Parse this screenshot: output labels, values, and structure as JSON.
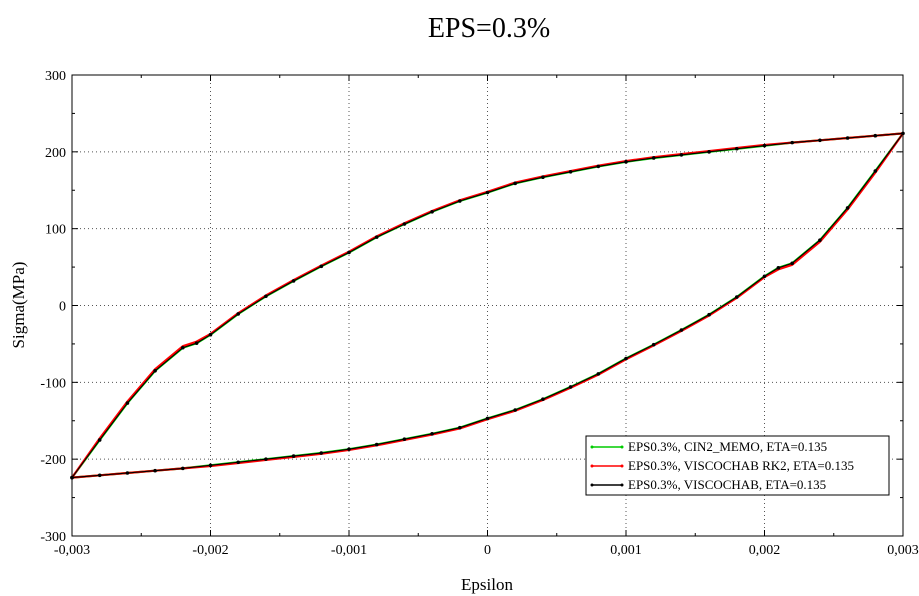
{
  "chart_data": {
    "type": "line",
    "title": "EPS=0.3%",
    "xlabel": "Epsilon",
    "ylabel": "Sigma(MPa)",
    "xlim": [
      -0.003,
      0.003
    ],
    "ylim": [
      -300,
      300
    ],
    "xticks": [
      -0.003,
      -0.002,
      -0.001,
      0,
      0.001,
      0.002,
      0.003
    ],
    "xtick_labels": [
      "-0,003",
      "-0,002",
      "-0,001",
      "0",
      "0,001",
      "0,002",
      "0,003"
    ],
    "yticks": [
      -300,
      -200,
      -100,
      0,
      100,
      200,
      300
    ],
    "ytick_labels": [
      "-300",
      "-200",
      "-100",
      "0",
      "100",
      "200",
      "300"
    ],
    "grid": true,
    "legend_position": "bottom-right",
    "series": [
      {
        "name": "EPS0.3%, CIN2_MEMO, ETA=0.135",
        "color": "#00cc00",
        "marker": "none",
        "x": [
          -0.003,
          -0.0028,
          -0.0026,
          -0.0024,
          -0.0022,
          -0.0021,
          -0.002,
          -0.0018,
          -0.0016,
          -0.0014,
          -0.0012,
          -0.001,
          -0.0008,
          -0.0006,
          -0.0004,
          -0.0002,
          0,
          0.0002,
          0.0004,
          0.0006,
          0.0008,
          0.001,
          0.0012,
          0.0014,
          0.0016,
          0.0018,
          0.002,
          0.0022,
          0.0024,
          0.0026,
          0.0028,
          0.003,
          0.0028,
          0.0026,
          0.0024,
          0.0022,
          0.0021,
          0.002,
          0.0018,
          0.0016,
          0.0014,
          0.0012,
          0.001,
          0.0008,
          0.0006,
          0.0004,
          0.0002,
          0,
          -0.0002,
          -0.0004,
          -0.0006,
          -0.0008,
          -0.001,
          -0.0012,
          -0.0014,
          -0.0016,
          -0.0018,
          -0.002,
          -0.0022,
          -0.0024,
          -0.0026,
          -0.0028,
          -0.003
        ],
        "y": [
          -224,
          -175,
          -127,
          -85,
          -55,
          -49,
          -38,
          -11,
          12,
          32,
          51,
          69,
          89,
          106,
          122,
          136,
          147,
          159,
          167,
          174,
          181,
          187,
          192,
          196,
          200,
          204,
          208,
          212,
          215,
          218,
          221,
          224,
          175,
          127,
          85,
          55,
          49,
          38,
          11,
          -12,
          -32,
          -51,
          -69,
          -89,
          -106,
          -122,
          -136,
          -147,
          -159,
          -167,
          -174,
          -181,
          -187,
          -192,
          -196,
          -200,
          -204,
          -208,
          -212,
          -215,
          -218,
          -221,
          -224
        ]
      },
      {
        "name": "EPS0.3%, VISCOCHAB RK2, ETA=0.135",
        "color": "#ff0000",
        "marker": "none",
        "x": [
          -0.003,
          -0.0028,
          -0.0026,
          -0.0024,
          -0.0022,
          -0.0021,
          -0.002,
          -0.0018,
          -0.0016,
          -0.0014,
          -0.0012,
          -0.001,
          -0.0008,
          -0.0006,
          -0.0004,
          -0.0002,
          0,
          0.0002,
          0.0004,
          0.0006,
          0.0008,
          0.001,
          0.0012,
          0.0014,
          0.0016,
          0.0018,
          0.002,
          0.0022,
          0.0024,
          0.0026,
          0.0028,
          0.003,
          0.0028,
          0.0026,
          0.0024,
          0.0022,
          0.0021,
          0.002,
          0.0018,
          0.0016,
          0.0014,
          0.0012,
          0.001,
          0.0008,
          0.0006,
          0.0004,
          0.0002,
          0,
          -0.0002,
          -0.0004,
          -0.0006,
          -0.0008,
          -0.001,
          -0.0012,
          -0.0014,
          -0.0016,
          -0.0018,
          -0.002,
          -0.0022,
          -0.0024,
          -0.0026,
          -0.0028,
          -0.003
        ],
        "y": [
          -224,
          -173,
          -125,
          -83,
          -53,
          -47,
          -37,
          -10,
          13,
          33,
          52,
          70,
          90,
          107,
          123,
          137,
          148,
          160,
          168,
          175,
          182,
          188,
          193,
          197,
          201,
          205,
          209,
          212,
          215,
          218,
          221,
          224,
          173,
          125,
          83,
          53,
          47,
          37,
          10,
          -13,
          -33,
          -52,
          -70,
          -90,
          -107,
          -123,
          -137,
          -148,
          -160,
          -168,
          -175,
          -182,
          -188,
          -193,
          -197,
          -201,
          -205,
          -209,
          -212,
          -215,
          -218,
          -221,
          -224
        ]
      },
      {
        "name": "EPS0.3%, VISCOCHAB, ETA=0.135",
        "color": "#000000",
        "marker": "dot",
        "x": [
          -0.003,
          -0.0028,
          -0.0026,
          -0.0024,
          -0.0022,
          -0.0021,
          -0.002,
          -0.0018,
          -0.0016,
          -0.0014,
          -0.0012,
          -0.001,
          -0.0008,
          -0.0006,
          -0.0004,
          -0.0002,
          0,
          0.0002,
          0.0004,
          0.0006,
          0.0008,
          0.001,
          0.0012,
          0.0014,
          0.0016,
          0.0018,
          0.002,
          0.0022,
          0.0024,
          0.0026,
          0.0028,
          0.003,
          0.0028,
          0.0026,
          0.0024,
          0.0022,
          0.0021,
          0.002,
          0.0018,
          0.0016,
          0.0014,
          0.0012,
          0.001,
          0.0008,
          0.0006,
          0.0004,
          0.0002,
          0,
          -0.0002,
          -0.0004,
          -0.0006,
          -0.0008,
          -0.001,
          -0.0012,
          -0.0014,
          -0.0016,
          -0.0018,
          -0.002,
          -0.0022,
          -0.0024,
          -0.0026,
          -0.0028,
          -0.003
        ],
        "y": [
          -224,
          -175,
          -127,
          -85,
          -55,
          -49,
          -38,
          -11,
          12,
          32,
          51,
          69,
          89,
          106,
          122,
          136,
          147,
          159,
          167,
          174,
          181,
          187,
          192,
          196,
          200,
          204,
          208,
          212,
          215,
          218,
          221,
          224,
          175,
          127,
          85,
          55,
          49,
          38,
          11,
          -12,
          -32,
          -51,
          -69,
          -89,
          -106,
          -122,
          -136,
          -147,
          -159,
          -167,
          -174,
          -181,
          -187,
          -192,
          -196,
          -200,
          -204,
          -208,
          -212,
          -215,
          -218,
          -221,
          -224
        ]
      }
    ]
  }
}
